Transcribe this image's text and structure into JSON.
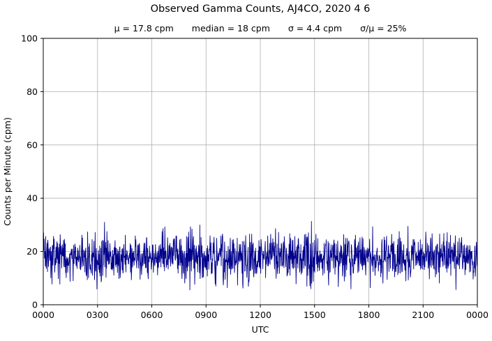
{
  "title": "Observed Gamma Counts, AJ4CO, 2020 4 6",
  "subtitle_parts": [
    "μ = 17.8 cpm",
    "median = 18 cpm",
    "σ = 4.4 cpm",
    "σ/μ = 25%"
  ],
  "chart_data": {
    "type": "line",
    "title": "Observed Gamma Counts, AJ4CO, 2020 4 6",
    "stats": {
      "mean_cpm": 17.8,
      "median_cpm": 18,
      "sigma_cpm": 4.4,
      "sigma_over_mu_percent": 25
    },
    "xlabel": "UTC",
    "ylabel": "Counts per Minute (cpm)",
    "x_tick_labels": [
      "0000",
      "0300",
      "0600",
      "0900",
      "1200",
      "1500",
      "1800",
      "2100",
      "0000"
    ],
    "x_range_minutes": [
      0,
      1440
    ],
    "y_ticks": [
      0,
      20,
      40,
      60,
      80,
      100
    ],
    "ylim": [
      0,
      100
    ],
    "grid": true,
    "legend": "none",
    "line_color": "#00008b",
    "grid_color": "#b0b0b0",
    "series": [
      {
        "name": "observed gamma counts",
        "sampling": "1 value per minute over 24 hours",
        "num_points": 1440,
        "mean": 17.8,
        "sigma": 4.4,
        "observed_min": 4,
        "observed_max": 33,
        "noise_seed": 20200406
      }
    ]
  }
}
